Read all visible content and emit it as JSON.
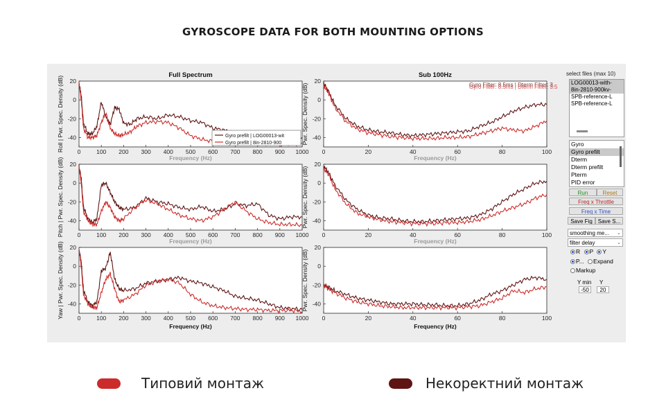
{
  "page": {
    "title": "GYROSCOPE DATA FOR BOTH MOUNTING OPTIONS",
    "colors": {
      "typical": "#cc2b2b",
      "incorrect": "#5e1414"
    }
  },
  "legend": [
    {
      "label": "Типовий монтаж",
      "color": "#cc2b2b"
    },
    {
      "label": "Некоректний монтаж",
      "color": "#5e1414"
    }
  ],
  "sidebar": {
    "files_label": "select files (max 10)",
    "files": [
      "LOG00013-with-",
      "8in-2810-900kv-",
      "SPB-reference-L",
      "SPB-reference-L"
    ],
    "types": [
      "Gyro",
      "Gyro prefilt",
      "Dterm",
      "Dterm prefilt",
      "Pterm",
      "PID error"
    ],
    "run_label": "Run",
    "reset_label": "Reset",
    "freq_throttle_label": "Freq x Throttle",
    "freq_time_label": "Freq x Time",
    "save_fig_label": "Save Fig",
    "save_s_label": "Save S...",
    "smoothing_label": "smoothing me...",
    "filter_delay_label": "filter delay",
    "radio_r": "R",
    "radio_p": "P",
    "radio_y": "Y",
    "radio_pdots": "P...",
    "expand_label": "Expand",
    "markup_label": "Markup",
    "ymin_label": "Y min",
    "ymax_label": "Y",
    "ymin_value": "-50",
    "ymax_value": "20"
  },
  "chart_data": [
    {
      "type": "line",
      "title": "Full Spectrum",
      "row_label": "Roll",
      "ylabel": "Pwr. Spec. Density (dB)",
      "xlabel": "Frequency (Hz)",
      "xlim": [
        0,
        1000
      ],
      "ylim": [
        -50,
        20
      ],
      "xticks": [
        0,
        100,
        200,
        300,
        400,
        500,
        600,
        700,
        800,
        900,
        1000
      ],
      "yticks": [
        20,
        0,
        -20,
        -40
      ],
      "legend_entries": [
        "Gyro prefilt | LOG00013-wit",
        "Gyro prefilt | 8in-2810-900"
      ],
      "series": [
        {
          "name": "Gyro prefilt | LOG00013-wit",
          "color": "#5e1414",
          "x": [
            0,
            10,
            20,
            40,
            60,
            80,
            100,
            120,
            140,
            160,
            180,
            200,
            230,
            260,
            300,
            350,
            400,
            450,
            500,
            550,
            600,
            650,
            700,
            750,
            800,
            850,
            900,
            950,
            1000
          ],
          "y": [
            18,
            5,
            -25,
            -36,
            -36,
            -28,
            -2,
            -18,
            -26,
            -8,
            -10,
            -25,
            -26,
            -20,
            -18,
            -20,
            -16,
            -18,
            -22,
            -24,
            -30,
            -32,
            -36,
            -36,
            -38,
            -40,
            -38,
            -40,
            -40
          ]
        },
        {
          "name": "Gyro prefilt | 8in-2810-900",
          "color": "#cc2b2b",
          "x": [
            0,
            10,
            20,
            40,
            60,
            80,
            100,
            120,
            140,
            160,
            180,
            200,
            230,
            260,
            300,
            350,
            400,
            450,
            500,
            550,
            600,
            650,
            700,
            750,
            800,
            850,
            900,
            950,
            1000
          ],
          "y": [
            18,
            0,
            -30,
            -40,
            -40,
            -38,
            -24,
            -14,
            -30,
            -36,
            -38,
            -37,
            -34,
            -28,
            -24,
            -23,
            -24,
            -30,
            -38,
            -42,
            -44,
            -45,
            -46,
            -45,
            -47,
            -46,
            -47,
            -47,
            -46
          ]
        }
      ]
    },
    {
      "type": "line",
      "title": "Sub 100Hz",
      "ylabel": "Pwr. Spec. Density (dB)",
      "xlabel": "Frequency (Hz)",
      "xlim": [
        0,
        100
      ],
      "ylim": [
        -50,
        20
      ],
      "xticks": [
        0,
        20,
        40,
        60,
        80,
        100
      ],
      "yticks": [
        20,
        0,
        -20,
        -40
      ],
      "annotations": [
        "Gyro Filter: 8.5ms | Dterm Filter: 3.",
        "Gyro Filter: 8.5ms | Dterm Filter: 3.5"
      ],
      "series": [
        {
          "color": "#5e1414",
          "x": [
            0,
            2,
            5,
            10,
            15,
            20,
            25,
            30,
            35,
            40,
            45,
            50,
            55,
            60,
            65,
            70,
            75,
            80,
            85,
            90,
            95,
            100
          ],
          "y": [
            18,
            10,
            -5,
            -20,
            -28,
            -32,
            -34,
            -35,
            -37,
            -38,
            -37,
            -36,
            -35,
            -34,
            -33,
            -28,
            -24,
            -18,
            -12,
            -8,
            -5,
            -5
          ]
        },
        {
          "color": "#cc2b2b",
          "x": [
            0,
            2,
            5,
            10,
            15,
            20,
            25,
            30,
            35,
            40,
            45,
            50,
            55,
            60,
            65,
            70,
            75,
            80,
            85,
            90,
            95,
            100
          ],
          "y": [
            15,
            8,
            -8,
            -23,
            -31,
            -35,
            -37,
            -39,
            -40,
            -41,
            -41,
            -41,
            -40,
            -40,
            -39,
            -36,
            -33,
            -30,
            -32,
            -33,
            -28,
            -22
          ]
        }
      ]
    },
    {
      "type": "line",
      "row_label": "Pitch",
      "ylabel": "Pwr. Spec. Density (dB)",
      "xlabel": "Frequency (Hz)",
      "xlim": [
        0,
        1000
      ],
      "ylim": [
        -50,
        20
      ],
      "xticks": [
        0,
        100,
        200,
        300,
        400,
        500,
        600,
        700,
        800,
        900,
        1000
      ],
      "yticks": [
        20,
        0,
        -20,
        -40
      ],
      "series": [
        {
          "color": "#5e1414",
          "x": [
            0,
            10,
            20,
            40,
            60,
            80,
            100,
            120,
            140,
            160,
            180,
            200,
            250,
            300,
            350,
            400,
            450,
            500,
            550,
            600,
            650,
            700,
            750,
            800,
            850,
            900,
            950,
            1000
          ],
          "y": [
            18,
            5,
            -25,
            -38,
            -42,
            -38,
            -2,
            0,
            -10,
            -20,
            -26,
            -28,
            -26,
            -16,
            -20,
            -22,
            -26,
            -28,
            -25,
            -30,
            -28,
            -22,
            -24,
            -22,
            -34,
            -38,
            -36,
            -36
          ]
        },
        {
          "color": "#cc2b2b",
          "x": [
            0,
            10,
            20,
            40,
            60,
            80,
            100,
            120,
            140,
            160,
            180,
            200,
            250,
            300,
            350,
            400,
            450,
            500,
            550,
            600,
            650,
            700,
            750,
            800,
            850,
            900,
            950,
            1000
          ],
          "y": [
            18,
            0,
            -30,
            -40,
            -44,
            -44,
            -30,
            -20,
            -26,
            -36,
            -40,
            -38,
            -26,
            -18,
            -22,
            -28,
            -34,
            -38,
            -40,
            -36,
            -28,
            -20,
            -30,
            -38,
            -42,
            -44,
            -44,
            -45
          ]
        }
      ]
    },
    {
      "type": "line",
      "ylabel": "Pwr. Spec. Density (dB)",
      "xlabel": "Frequency (Hz)",
      "xlim": [
        0,
        100
      ],
      "ylim": [
        -50,
        20
      ],
      "xticks": [
        0,
        20,
        40,
        60,
        80,
        100
      ],
      "yticks": [
        20,
        0,
        -20,
        -40
      ],
      "series": [
        {
          "color": "#5e1414",
          "x": [
            0,
            2,
            5,
            10,
            15,
            20,
            25,
            30,
            35,
            40,
            45,
            50,
            55,
            60,
            65,
            70,
            75,
            80,
            85,
            90,
            95,
            100
          ],
          "y": [
            18,
            12,
            -2,
            -18,
            -28,
            -34,
            -37,
            -38,
            -40,
            -41,
            -41,
            -40,
            -39,
            -38,
            -37,
            -34,
            -28,
            -20,
            -12,
            -6,
            0,
            2
          ]
        },
        {
          "color": "#cc2b2b",
          "x": [
            0,
            2,
            5,
            10,
            15,
            20,
            25,
            30,
            35,
            40,
            45,
            50,
            55,
            60,
            65,
            70,
            75,
            80,
            85,
            90,
            95,
            100
          ],
          "y": [
            15,
            10,
            -6,
            -22,
            -32,
            -36,
            -39,
            -41,
            -42,
            -43,
            -43,
            -43,
            -42,
            -42,
            -41,
            -39,
            -35,
            -30,
            -26,
            -22,
            -16,
            -12
          ]
        }
      ]
    },
    {
      "type": "line",
      "row_label": "Yaw",
      "ylabel": "Pwr. Spec. Density (dB)",
      "xlabel": "Frequency (Hz)",
      "xlim": [
        0,
        1000
      ],
      "ylim": [
        -50,
        20
      ],
      "xticks": [
        0,
        100,
        200,
        300,
        400,
        500,
        600,
        700,
        800,
        900,
        1000
      ],
      "yticks": [
        20,
        0,
        -20,
        -40
      ],
      "series": [
        {
          "color": "#5e1414",
          "x": [
            0,
            10,
            20,
            40,
            60,
            80,
            100,
            120,
            140,
            160,
            180,
            200,
            250,
            300,
            350,
            400,
            450,
            500,
            550,
            600,
            650,
            700,
            750,
            800,
            850,
            900,
            950,
            1000
          ],
          "y": [
            18,
            5,
            -25,
            -38,
            -42,
            -38,
            -5,
            -2,
            15,
            -14,
            -24,
            -26,
            -24,
            -18,
            -16,
            -14,
            -12,
            -16,
            -18,
            -22,
            -26,
            -32,
            -34,
            -36,
            -40,
            -44,
            -45,
            -46
          ]
        },
        {
          "color": "#cc2b2b",
          "x": [
            0,
            10,
            20,
            40,
            60,
            80,
            100,
            120,
            140,
            160,
            180,
            200,
            250,
            300,
            350,
            400,
            450,
            500,
            550,
            600,
            650,
            700,
            750,
            800,
            850,
            900,
            950,
            1000
          ],
          "y": [
            18,
            0,
            -30,
            -40,
            -44,
            -44,
            -28,
            -14,
            -8,
            -24,
            -38,
            -36,
            -30,
            -20,
            -16,
            -14,
            -18,
            -30,
            -38,
            -42,
            -44,
            -45,
            -46,
            -46,
            -47,
            -47,
            -47,
            -48
          ]
        }
      ]
    },
    {
      "type": "line",
      "ylabel": "Pwr. Spec. Density (dB)",
      "xlabel": "Frequency (Hz)",
      "xlim": [
        0,
        100
      ],
      "ylim": [
        -50,
        20
      ],
      "xticks": [
        0,
        20,
        40,
        60,
        80,
        100
      ],
      "yticks": [
        20,
        0,
        -20,
        -40
      ],
      "series": [
        {
          "color": "#5e1414",
          "x": [
            0,
            2,
            5,
            10,
            15,
            20,
            25,
            30,
            35,
            40,
            45,
            50,
            55,
            60,
            65,
            70,
            75,
            80,
            85,
            90,
            95,
            100
          ],
          "y": [
            -20,
            -22,
            -26,
            -30,
            -34,
            -36,
            -38,
            -40,
            -40,
            -40,
            -41,
            -41,
            -42,
            -42,
            -40,
            -36,
            -30,
            -26,
            -20,
            -14,
            -12,
            -14
          ]
        },
        {
          "color": "#cc2b2b",
          "x": [
            0,
            2,
            5,
            10,
            15,
            20,
            25,
            30,
            35,
            40,
            45,
            50,
            55,
            60,
            65,
            70,
            75,
            80,
            85,
            90,
            95,
            100
          ],
          "y": [
            -20,
            -24,
            -28,
            -34,
            -38,
            -40,
            -42,
            -43,
            -44,
            -44,
            -44,
            -44,
            -44,
            -44,
            -43,
            -42,
            -38,
            -34,
            -26,
            -28,
            -24,
            -22
          ]
        }
      ]
    }
  ]
}
